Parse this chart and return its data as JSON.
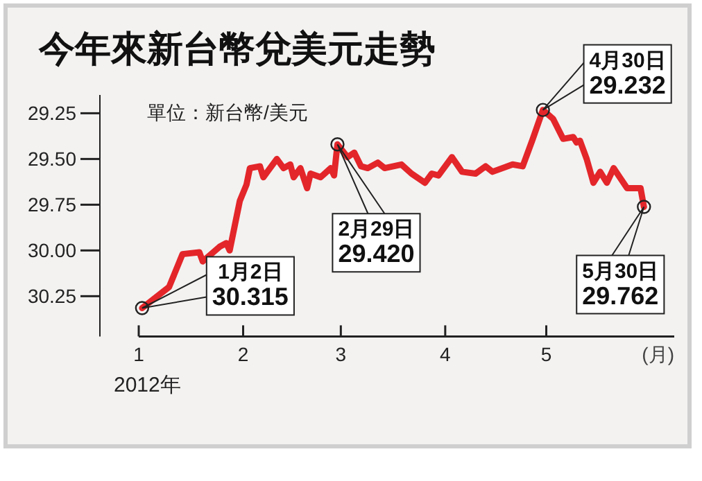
{
  "chart_data": {
    "type": "line",
    "title": "今年來新台幣兌美元走勢",
    "subtitle": "單位：新台幣/美元",
    "xlabel": "(月)",
    "x": [
      "--01-02",
      "--01-10",
      "--01-14",
      "--01-19",
      "--01-20",
      "--01-25",
      "--01-27",
      "--01-28",
      "--01-31",
      "--02-02",
      "--02-03",
      "--02-06",
      "--02-07",
      "--02-11",
      "--02-13",
      "--02-15",
      "--02-16",
      "--02-18",
      "--02-20",
      "--02-21",
      "--02-24",
      "--02-27",
      "--02-28",
      "--02-29",
      "--03-03",
      "--03-05",
      "--03-07",
      "--03-09",
      "--03-12",
      "--03-14",
      "--03-19",
      "--03-22",
      "--03-26",
      "--03-28",
      "--03-30",
      "--04-03",
      "--04-06",
      "--04-10",
      "--04-13",
      "--04-15",
      "--04-21",
      "--04-24",
      "--04-27",
      "--04-30",
      "--05-03",
      "--05-06",
      "--05-09",
      "--05-10",
      "--05-11",
      "--05-13",
      "--05-15",
      "--05-17",
      "--05-19",
      "--05-21",
      "--05-25",
      "--05-29",
      "--05-30"
    ],
    "series": [
      {
        "color": "#e3262a",
        "values": [
          30.315,
          30.2,
          30.02,
          30.01,
          30.06,
          29.98,
          29.96,
          30.0,
          29.73,
          29.64,
          29.55,
          29.54,
          29.6,
          29.5,
          29.55,
          29.53,
          29.6,
          29.55,
          29.66,
          29.58,
          29.6,
          29.55,
          29.59,
          29.42,
          29.49,
          29.465,
          29.54,
          29.55,
          29.52,
          29.55,
          29.53,
          29.58,
          29.63,
          29.58,
          29.59,
          29.49,
          29.57,
          29.58,
          29.54,
          29.57,
          29.53,
          29.54,
          29.39,
          29.232,
          29.28,
          29.39,
          29.38,
          29.41,
          29.4,
          29.5,
          29.63,
          29.57,
          29.63,
          29.55,
          29.66,
          29.66,
          29.762
        ]
      }
    ],
    "xlim": [
      "--01-01",
      "--06-08"
    ],
    "ylim": [
      30.47,
      29.15
    ],
    "xticks": [
      {
        "value": "--01-01",
        "label": "1"
      },
      {
        "value": "--02-01",
        "label": "2"
      },
      {
        "value": "--03-01",
        "label": "3"
      },
      {
        "value": "--04-01",
        "label": "4"
      },
      {
        "value": "--05-01",
        "label": "5"
      }
    ],
    "yticks": [
      {
        "value": 29.25,
        "label": "29.25"
      },
      {
        "value": 29.5,
        "label": "29.50"
      },
      {
        "value": 29.75,
        "label": "29.75"
      },
      {
        "value": 30,
        "label": "30.00"
      },
      {
        "value": 30.25,
        "label": "30.25"
      }
    ],
    "annotations": [
      {
        "text": "1月2日\n30.315",
        "x": "--01-02",
        "y": 30.315
      },
      {
        "text": "2月29日\n29.420",
        "x": "--02-29",
        "y": 29.42
      },
      {
        "text": "4月30日\n29.232",
        "x": "--04-30",
        "y": 29.232
      },
      {
        "text": "5月30日\n29.762",
        "x": "--05-30",
        "y": 29.762
      },
      "2012年"
    ],
    "marker": "none",
    "line_style": "solid",
    "grid": false
  }
}
